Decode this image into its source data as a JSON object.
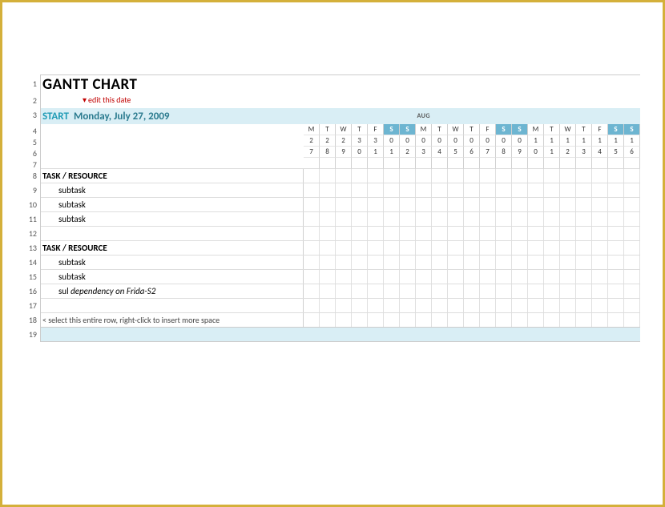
{
  "title": "GANTT CHART",
  "edit_hint": "edit this date",
  "start_label": "START",
  "start_date": "Monday, July 27, 2009",
  "month_label": "AUG",
  "calendar": {
    "weekend_color": "#6db5d1",
    "header_bg": "#d9eef5",
    "days": [
      {
        "dow": "M",
        "d1": "2",
        "d2": "7",
        "weekend": false
      },
      {
        "dow": "T",
        "d1": "2",
        "d2": "8",
        "weekend": false
      },
      {
        "dow": "W",
        "d1": "2",
        "d2": "9",
        "weekend": false
      },
      {
        "dow": "T",
        "d1": "3",
        "d2": "0",
        "weekend": false
      },
      {
        "dow": "F",
        "d1": "3",
        "d2": "1",
        "weekend": false
      },
      {
        "dow": "S",
        "d1": "0",
        "d2": "1",
        "weekend": true
      },
      {
        "dow": "S",
        "d1": "0",
        "d2": "2",
        "weekend": true
      },
      {
        "dow": "M",
        "d1": "0",
        "d2": "3",
        "weekend": false
      },
      {
        "dow": "T",
        "d1": "0",
        "d2": "4",
        "weekend": false
      },
      {
        "dow": "W",
        "d1": "0",
        "d2": "5",
        "weekend": false
      },
      {
        "dow": "T",
        "d1": "0",
        "d2": "6",
        "weekend": false
      },
      {
        "dow": "F",
        "d1": "0",
        "d2": "7",
        "weekend": false
      },
      {
        "dow": "S",
        "d1": "0",
        "d2": "8",
        "weekend": true
      },
      {
        "dow": "S",
        "d1": "0",
        "d2": "9",
        "weekend": true
      },
      {
        "dow": "M",
        "d1": "1",
        "d2": "0",
        "weekend": false
      },
      {
        "dow": "T",
        "d1": "1",
        "d2": "1",
        "weekend": false
      },
      {
        "dow": "W",
        "d1": "1",
        "d2": "2",
        "weekend": false
      },
      {
        "dow": "T",
        "d1": "1",
        "d2": "3",
        "weekend": false
      },
      {
        "dow": "F",
        "d1": "1",
        "d2": "4",
        "weekend": false
      },
      {
        "dow": "S",
        "d1": "1",
        "d2": "5",
        "weekend": true
      },
      {
        "dow": "S",
        "d1": "1",
        "d2": "6",
        "weekend": true
      }
    ]
  },
  "rows": [
    {
      "n": "1"
    },
    {
      "n": "2"
    },
    {
      "n": "3"
    },
    {
      "n": "4"
    },
    {
      "n": "5"
    },
    {
      "n": "6"
    },
    {
      "n": "7"
    },
    {
      "n": "8"
    },
    {
      "n": "9"
    },
    {
      "n": "10"
    },
    {
      "n": "11"
    },
    {
      "n": "12"
    },
    {
      "n": "13"
    },
    {
      "n": "14"
    },
    {
      "n": "15"
    },
    {
      "n": "16"
    },
    {
      "n": "17"
    },
    {
      "n": "18"
    },
    {
      "n": "19"
    }
  ],
  "tasks": {
    "header1": "TASK / RESOURCE",
    "sub1": "subtask",
    "sub2": "subtask",
    "sub3": "subtask",
    "header2": "TASK / RESOURCE",
    "sub4": "subtask",
    "sub5": "subtask",
    "sub6_prefix": "sul",
    "sub6_dep": "dependency on Frida-S2",
    "instruction": "< select this entire row, right-click to insert more space"
  },
  "colors": {
    "border": "#d4b03a",
    "accent": "#1f9bb5",
    "date_text": "#2a7a8e",
    "hint": "#c00000",
    "grid": "#d0d0d0"
  }
}
